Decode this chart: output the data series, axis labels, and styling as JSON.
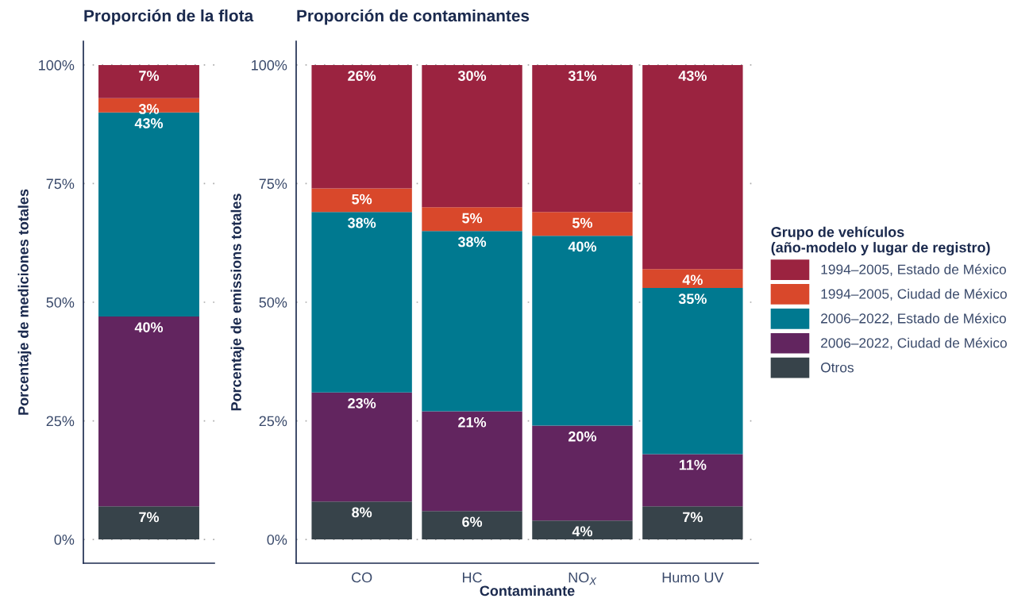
{
  "chart_data": [
    {
      "type": "bar",
      "stacked": true,
      "title": "Proporción de la flota",
      "ylabel": "Porcentaje de mediciones totales",
      "categories": [
        null
      ],
      "series": [
        {
          "color": "#37434a",
          "values": [
            7
          ],
          "value_labels": [
            "7%"
          ]
        },
        {
          "color": "#62255f",
          "values": [
            40
          ],
          "value_labels": [
            "40%"
          ]
        },
        {
          "color": "#007990",
          "values": [
            43
          ],
          "value_labels": [
            "43%"
          ]
        },
        {
          "color": "#d9482b",
          "values": [
            3
          ],
          "value_labels": [
            "3%"
          ]
        },
        {
          "color": "#9b2340",
          "values": [
            7
          ],
          "value_labels": [
            "7%"
          ]
        }
      ],
      "ylim": [
        -5,
        105
      ],
      "yticks": [
        {
          "value": 0,
          "label": "0%"
        },
        {
          "value": 25,
          "label": "25%"
        },
        {
          "value": 50,
          "label": "50%"
        },
        {
          "value": 75,
          "label": "75%"
        },
        {
          "value": 100,
          "label": "100%"
        }
      ],
      "grid": "y"
    },
    {
      "type": "bar",
      "stacked": true,
      "title": "Proporción de contaminantes",
      "ylabel": "Porcentaje de emissions totales",
      "xlabel": "Contaminante",
      "legend_title": "Grupo de vehículos\n(año-modelo y lugar de registro)",
      "categories": [
        "CO",
        "HC",
        "NO$_{X}$",
        "Humo UV"
      ],
      "series": [
        {
          "name": "Otros",
          "color": "#37434a",
          "values": [
            8,
            6,
            4,
            7
          ],
          "value_labels": [
            "8%",
            "6%",
            "4%",
            "7%"
          ]
        },
        {
          "name": "2006–2022, Ciudad de México",
          "color": "#62255f",
          "values": [
            23,
            21,
            20,
            11
          ],
          "value_labels": [
            "23%",
            "21%",
            "20%",
            "11%"
          ]
        },
        {
          "name": "2006–2022, Estado de México",
          "color": "#007990",
          "values": [
            38,
            38,
            40,
            35
          ],
          "value_labels": [
            "38%",
            "38%",
            "40%",
            "35%"
          ]
        },
        {
          "name": "1994–2005, Ciudad de México",
          "color": "#d9482b",
          "values": [
            5,
            5,
            5,
            4
          ],
          "value_labels": [
            "5%",
            "5%",
            "5%",
            "4%"
          ]
        },
        {
          "name": "1994–2005, Estado de México",
          "color": "#9b2340",
          "values": [
            26,
            30,
            31,
            43
          ],
          "value_labels": [
            "26%",
            "30%",
            "31%",
            "43%"
          ]
        }
      ],
      "ylim": [
        -5,
        105
      ],
      "yticks": [
        {
          "value": 0,
          "label": "0%"
        },
        {
          "value": 25,
          "label": "25%"
        },
        {
          "value": 50,
          "label": "50%"
        },
        {
          "value": 75,
          "label": "75%"
        },
        {
          "value": 100,
          "label": "100%"
        }
      ],
      "grid": "y",
      "legend": "right"
    }
  ]
}
